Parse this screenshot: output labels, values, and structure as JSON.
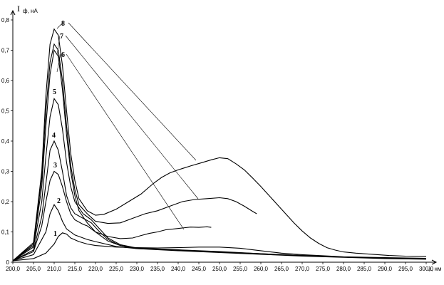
{
  "chart_data": {
    "type": "line",
    "ylabel_main": "I",
    "ylabel_sub": "ф, нА",
    "xlabel": "λ, нм",
    "xlim": [
      200,
      300
    ],
    "ylim": [
      0,
      0.85
    ],
    "grid": false,
    "x_ticks": [
      "200,0",
      "205,0",
      "210,0",
      "215,0",
      "220,0",
      "225,0",
      "230,0",
      "235,0",
      "240,0",
      "245,0",
      "250,0",
      "255,0",
      "260,0",
      "265,0",
      "270,0",
      "275,0",
      "280,0",
      "285,0",
      "290,0",
      "295,0",
      "300,0"
    ],
    "y_ticks": [
      "0",
      "0,1",
      "0,2",
      "0,3",
      "0,4",
      "0,5",
      "0,6",
      "0,7",
      "0,8"
    ],
    "series": [
      {
        "name": "1",
        "points": [
          [
            200,
            0.005
          ],
          [
            205,
            0.012
          ],
          [
            208,
            0.03
          ],
          [
            210,
            0.06
          ],
          [
            211,
            0.085
          ],
          [
            212,
            0.097
          ],
          [
            213,
            0.093
          ],
          [
            214,
            0.08
          ],
          [
            216,
            0.068
          ],
          [
            218,
            0.06
          ],
          [
            220,
            0.055
          ],
          [
            225,
            0.05
          ],
          [
            230,
            0.048
          ],
          [
            235,
            0.047
          ],
          [
            240,
            0.048
          ],
          [
            245,
            0.05
          ],
          [
            250,
            0.05
          ],
          [
            255,
            0.046
          ],
          [
            260,
            0.038
          ],
          [
            265,
            0.03
          ],
          [
            270,
            0.025
          ],
          [
            280,
            0.018
          ],
          [
            290,
            0.015
          ],
          [
            300,
            0.013
          ]
        ]
      },
      {
        "name": "2",
        "points": [
          [
            200,
            0.005
          ],
          [
            205,
            0.025
          ],
          [
            208,
            0.1
          ],
          [
            209,
            0.16
          ],
          [
            210,
            0.19
          ],
          [
            211,
            0.17
          ],
          [
            212,
            0.135
          ],
          [
            213,
            0.11
          ],
          [
            215,
            0.09
          ],
          [
            218,
            0.075
          ],
          [
            220,
            0.068
          ],
          [
            225,
            0.052
          ],
          [
            230,
            0.045
          ],
          [
            240,
            0.04
          ],
          [
            250,
            0.034
          ],
          [
            260,
            0.028
          ],
          [
            270,
            0.022
          ],
          [
            280,
            0.017
          ],
          [
            290,
            0.013
          ],
          [
            300,
            0.011
          ]
        ]
      },
      {
        "name": "3",
        "points": [
          [
            200,
            0.005
          ],
          [
            205,
            0.035
          ],
          [
            207,
            0.12
          ],
          [
            208,
            0.2
          ],
          [
            209,
            0.27
          ],
          [
            210,
            0.3
          ],
          [
            211,
            0.29
          ],
          [
            212,
            0.25
          ],
          [
            213,
            0.2
          ],
          [
            214,
            0.16
          ],
          [
            215,
            0.14
          ],
          [
            217,
            0.125
          ],
          [
            218,
            0.12
          ],
          [
            219,
            0.11
          ],
          [
            221,
            0.09
          ],
          [
            223,
            0.07
          ],
          [
            226,
            0.055
          ],
          [
            230,
            0.045
          ],
          [
            240,
            0.038
          ],
          [
            250,
            0.032
          ],
          [
            260,
            0.026
          ],
          [
            270,
            0.02
          ],
          [
            280,
            0.016
          ],
          [
            290,
            0.012
          ],
          [
            300,
            0.01
          ]
        ]
      },
      {
        "name": "4",
        "points": [
          [
            200,
            0.005
          ],
          [
            205,
            0.04
          ],
          [
            207,
            0.15
          ],
          [
            208,
            0.26
          ],
          [
            209,
            0.37
          ],
          [
            210,
            0.4
          ],
          [
            211,
            0.37
          ],
          [
            212,
            0.3
          ],
          [
            213,
            0.22
          ],
          [
            214,
            0.18
          ],
          [
            215,
            0.16
          ],
          [
            217,
            0.145
          ],
          [
            219,
            0.13
          ],
          [
            221,
            0.1
          ],
          [
            223,
            0.075
          ],
          [
            226,
            0.055
          ],
          [
            230,
            0.046
          ],
          [
            240,
            0.04
          ],
          [
            250,
            0.034
          ],
          [
            260,
            0.027
          ],
          [
            270,
            0.021
          ],
          [
            280,
            0.017
          ],
          [
            290,
            0.013
          ],
          [
            300,
            0.011
          ]
        ]
      },
      {
        "name": "5",
        "points": [
          [
            200,
            0.005
          ],
          [
            205,
            0.05
          ],
          [
            207,
            0.2
          ],
          [
            208,
            0.35
          ],
          [
            209,
            0.48
          ],
          [
            210,
            0.54
          ],
          [
            211,
            0.52
          ],
          [
            212,
            0.44
          ],
          [
            213,
            0.33
          ],
          [
            214,
            0.25
          ],
          [
            215,
            0.2
          ],
          [
            217,
            0.16
          ],
          [
            219,
            0.14
          ],
          [
            221,
            0.11
          ],
          [
            223,
            0.08
          ],
          [
            226,
            0.058
          ],
          [
            230,
            0.047
          ],
          [
            240,
            0.041
          ],
          [
            250,
            0.035
          ],
          [
            260,
            0.028
          ],
          [
            270,
            0.022
          ],
          [
            280,
            0.017
          ],
          [
            290,
            0.013
          ],
          [
            300,
            0.011
          ]
        ]
      },
      {
        "name": "6",
        "points": [
          [
            200,
            0.005
          ],
          [
            205,
            0.055
          ],
          [
            207,
            0.25
          ],
          [
            208,
            0.45
          ],
          [
            209,
            0.62
          ],
          [
            210,
            0.7
          ],
          [
            211,
            0.68
          ],
          [
            212,
            0.57
          ],
          [
            213,
            0.42
          ],
          [
            214,
            0.3
          ],
          [
            215,
            0.22
          ],
          [
            216,
            0.17
          ],
          [
            218,
            0.13
          ],
          [
            220,
            0.1
          ],
          [
            223,
            0.085
          ],
          [
            226,
            0.078
          ],
          [
            229,
            0.08
          ],
          [
            231,
            0.088
          ],
          [
            233,
            0.095
          ],
          [
            235,
            0.1
          ],
          [
            237,
            0.107
          ],
          [
            239,
            0.11
          ],
          [
            241,
            0.113
          ],
          [
            243,
            0.116
          ],
          [
            245,
            0.115
          ],
          [
            247,
            0.117
          ],
          [
            248,
            0.115
          ]
        ]
      },
      {
        "name": "7",
        "points": [
          [
            200,
            0.005
          ],
          [
            205,
            0.06
          ],
          [
            207,
            0.28
          ],
          [
            208,
            0.5
          ],
          [
            209,
            0.66
          ],
          [
            210,
            0.72
          ],
          [
            211,
            0.7
          ],
          [
            212,
            0.6
          ],
          [
            213,
            0.45
          ],
          [
            214,
            0.32
          ],
          [
            215,
            0.24
          ],
          [
            216,
            0.19
          ],
          [
            218,
            0.16
          ],
          [
            220,
            0.135
          ],
          [
            223,
            0.128
          ],
          [
            226,
            0.13
          ],
          [
            229,
            0.145
          ],
          [
            232,
            0.16
          ],
          [
            235,
            0.17
          ],
          [
            238,
            0.185
          ],
          [
            241,
            0.2
          ],
          [
            244,
            0.207
          ],
          [
            247,
            0.21
          ],
          [
            250,
            0.213
          ],
          [
            252,
            0.21
          ],
          [
            254,
            0.2
          ],
          [
            256,
            0.185
          ],
          [
            258,
            0.168
          ],
          [
            259,
            0.16
          ]
        ]
      },
      {
        "name": "8",
        "points": [
          [
            200,
            0.005
          ],
          [
            205,
            0.065
          ],
          [
            207,
            0.3
          ],
          [
            208,
            0.55
          ],
          [
            209,
            0.72
          ],
          [
            210,
            0.77
          ],
          [
            211,
            0.75
          ],
          [
            212,
            0.65
          ],
          [
            213,
            0.5
          ],
          [
            214,
            0.36
          ],
          [
            215,
            0.27
          ],
          [
            216,
            0.21
          ],
          [
            218,
            0.17
          ],
          [
            220,
            0.155
          ],
          [
            222,
            0.158
          ],
          [
            225,
            0.175
          ],
          [
            228,
            0.2
          ],
          [
            231,
            0.225
          ],
          [
            234,
            0.26
          ],
          [
            236,
            0.28
          ],
          [
            238,
            0.295
          ],
          [
            240,
            0.305
          ],
          [
            243,
            0.318
          ],
          [
            246,
            0.33
          ],
          [
            248,
            0.338
          ],
          [
            250,
            0.345
          ],
          [
            252,
            0.342
          ],
          [
            254,
            0.325
          ],
          [
            256,
            0.305
          ],
          [
            258,
            0.278
          ],
          [
            260,
            0.25
          ],
          [
            262,
            0.22
          ],
          [
            264,
            0.19
          ],
          [
            266,
            0.16
          ],
          [
            268,
            0.13
          ],
          [
            270,
            0.103
          ],
          [
            272,
            0.08
          ],
          [
            274,
            0.062
          ],
          [
            276,
            0.048
          ],
          [
            278,
            0.04
          ],
          [
            280,
            0.034
          ],
          [
            283,
            0.03
          ],
          [
            287,
            0.026
          ],
          [
            291,
            0.022
          ],
          [
            295,
            0.02
          ],
          [
            300,
            0.019
          ]
        ]
      }
    ],
    "curve_labels": [
      "1",
      "2",
      "3",
      "4",
      "5",
      "6",
      "7",
      "8"
    ]
  }
}
